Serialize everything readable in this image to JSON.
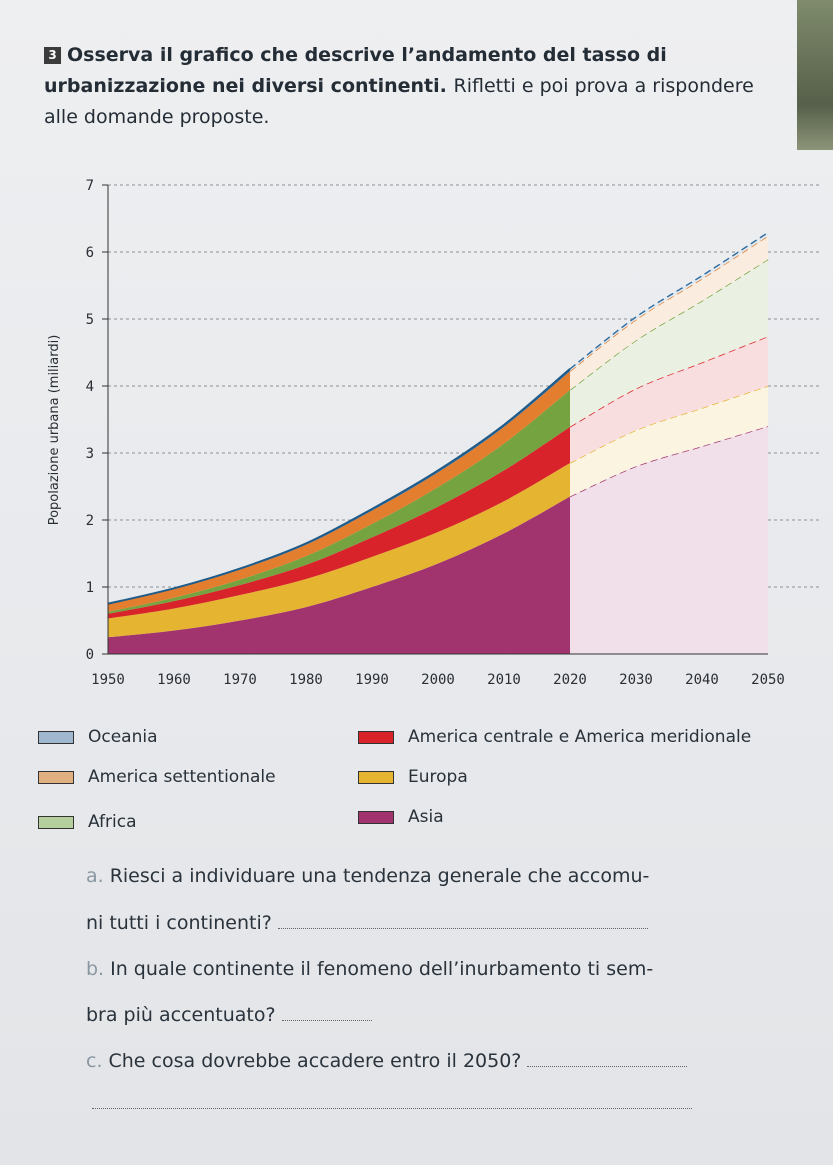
{
  "exercise": {
    "number": "3",
    "title_bold": "Osserva il grafico che descrive l’andamento del tasso di urbanizzazione nei diversi continenti.",
    "title_plain": "Rifletti e poi prova a rispondere alle domande proposte."
  },
  "chart_data": {
    "type": "area",
    "stacked": true,
    "x": [
      1950,
      1960,
      1970,
      1980,
      1990,
      2000,
      2010,
      2020,
      2030,
      2040,
      2050
    ],
    "x_tick_labels": [
      "1950",
      "1960",
      "1970",
      "1980",
      "1990",
      "2000",
      "2010",
      "2020",
      "2030",
      "2040",
      "2050"
    ],
    "y_tick_labels": [
      "0",
      "1",
      "2",
      "3",
      "4",
      "5",
      "6",
      "7"
    ],
    "ylabel": "Popolazione urbana (miliardi)",
    "ylim": [
      0,
      7
    ],
    "grid": true,
    "projection_from": 2020,
    "series": [
      {
        "name": "Asia",
        "color": "#a1336e",
        "values": [
          0.25,
          0.35,
          0.5,
          0.7,
          1.0,
          1.35,
          1.8,
          2.35,
          2.8,
          3.1,
          3.4
        ]
      },
      {
        "name": "Europa",
        "color": "#e5b431",
        "values": [
          0.28,
          0.33,
          0.38,
          0.42,
          0.45,
          0.47,
          0.48,
          0.5,
          0.54,
          0.57,
          0.6
        ]
      },
      {
        "name": "America centrale e America meridionale",
        "color": "#d8232a",
        "values": [
          0.07,
          0.11,
          0.15,
          0.21,
          0.29,
          0.38,
          0.46,
          0.54,
          0.62,
          0.68,
          0.74
        ]
      },
      {
        "name": "Africa",
        "color": "#75a33f",
        "values": [
          0.03,
          0.05,
          0.08,
          0.13,
          0.2,
          0.29,
          0.4,
          0.55,
          0.72,
          0.92,
          1.15
        ]
      },
      {
        "name": "America settentionale",
        "color": "#e47e2f",
        "values": [
          0.11,
          0.13,
          0.15,
          0.17,
          0.2,
          0.22,
          0.25,
          0.28,
          0.31,
          0.33,
          0.35
        ]
      },
      {
        "name": "Oceania",
        "color": "#2f6b9e",
        "values": [
          0.01,
          0.01,
          0.015,
          0.02,
          0.025,
          0.03,
          0.03,
          0.035,
          0.04,
          0.045,
          0.05
        ]
      }
    ]
  },
  "legend": [
    {
      "label": "Oceania",
      "color": "#9fb8cf"
    },
    {
      "label": "America centrale e America meridionale",
      "color": "#d8232a"
    },
    {
      "label": "America settentionale",
      "color": "#e0b080"
    },
    {
      "label": "Europa",
      "color": "#e5b431"
    },
    {
      "label": "Africa",
      "color": "#b6cf9e"
    },
    {
      "label": "Asia",
      "color": "#a1336e"
    }
  ],
  "questions": [
    {
      "letter": "a.",
      "text": "Riesci a individuare una tendenza generale che accomu-",
      "text2": "ni tutti i continenti?"
    },
    {
      "letter": "b.",
      "text": "In quale continente il fenomeno dell’inurbamento ti sem-",
      "text2": "bra più accentuato?"
    },
    {
      "letter": "c.",
      "text": "Che cosa dovrebbe accadere entro il 2050?"
    }
  ]
}
